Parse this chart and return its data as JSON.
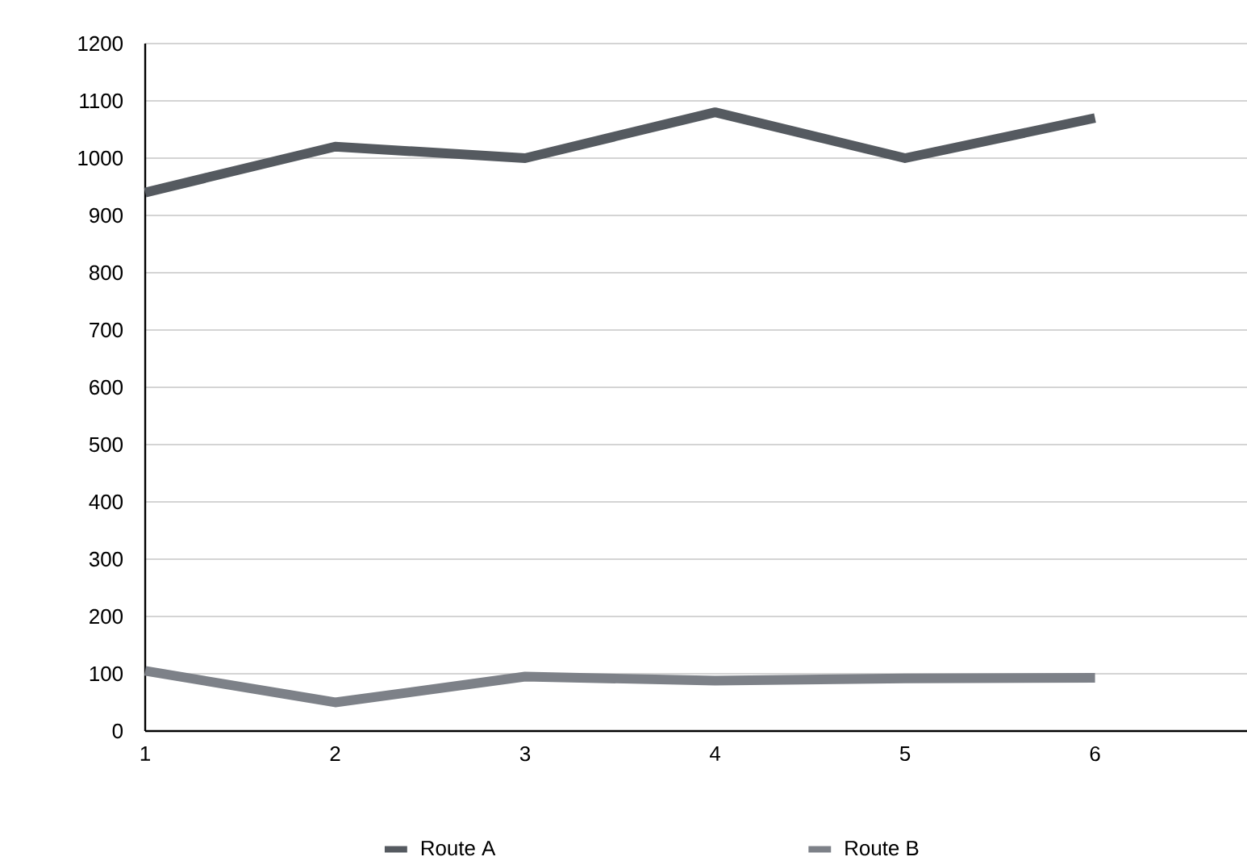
{
  "chart_data": {
    "type": "line",
    "x": [
      1,
      2,
      3,
      4,
      5,
      6
    ],
    "xlim": [
      1,
      6.8
    ],
    "xticks": [
      1,
      2,
      3,
      4,
      5,
      6
    ],
    "ylim": [
      0,
      1200
    ],
    "yticks": [
      0,
      100,
      200,
      300,
      400,
      500,
      600,
      700,
      800,
      900,
      1000,
      1100,
      1200
    ],
    "grid": "y",
    "legend": "bottom",
    "marker": "none",
    "line_style": "solid",
    "series": [
      {
        "name": "Route A",
        "color": "#555a60",
        "values": [
          940,
          1020,
          1000,
          1080,
          1000,
          1070
        ]
      },
      {
        "name": "Route B",
        "color": "#7d8188",
        "values": [
          105,
          50,
          95,
          88,
          92,
          93
        ]
      }
    ]
  }
}
